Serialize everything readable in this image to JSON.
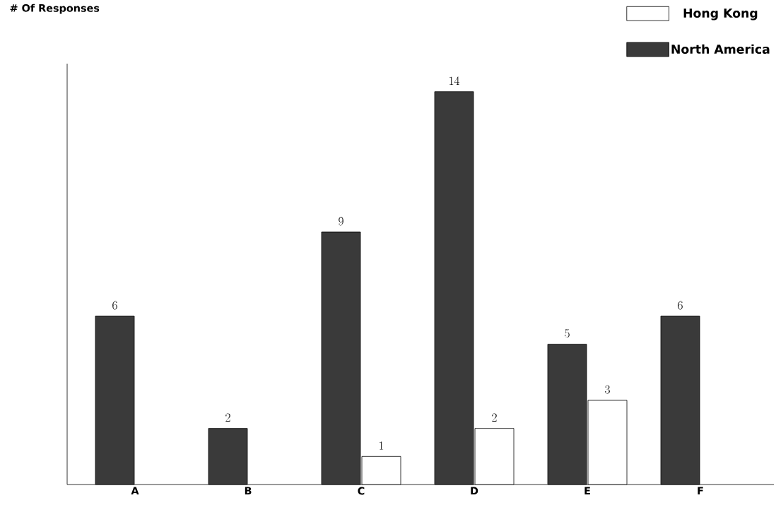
{
  "chart_data": {
    "type": "bar",
    "ylabel": "# Of Responses",
    "categories": [
      "A",
      "B",
      "C",
      "D",
      "E",
      "F"
    ],
    "series": [
      {
        "name": "North America",
        "color": "#3a3a3a",
        "values": [
          6,
          2,
          9,
          14,
          5,
          6
        ]
      },
      {
        "name": "Hong Kong",
        "color": "#ffffff",
        "values": [
          null,
          null,
          1,
          2,
          3,
          null
        ]
      }
    ],
    "relative": false,
    "ylim": [
      0,
      15
    ],
    "data_labels": true,
    "legend": "top right"
  }
}
